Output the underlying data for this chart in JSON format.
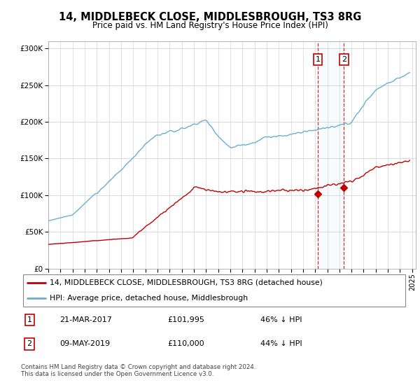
{
  "title": "14, MIDDLEBECK CLOSE, MIDDLESBROUGH, TS3 8RG",
  "subtitle": "Price paid vs. HM Land Registry's House Price Index (HPI)",
  "legend_line1": "14, MIDDLEBECK CLOSE, MIDDLESBROUGH, TS3 8RG (detached house)",
  "legend_line2": "HPI: Average price, detached house, Middlesbrough",
  "transaction1": {
    "label": "1",
    "date": "21-MAR-2017",
    "price": "£101,995",
    "pct": "46% ↓ HPI"
  },
  "transaction2": {
    "label": "2",
    "date": "09-MAY-2019",
    "price": "£110,000",
    "pct": "44% ↓ HPI"
  },
  "footer": "Contains HM Land Registry data © Crown copyright and database right 2024.\nThis data is licensed under the Open Government Licence v3.0.",
  "hpi_color": "#6aaed6",
  "price_color": "#c00000",
  "vline_color": "#c00000",
  "shade_color": "#d0e8f5",
  "background_color": "#ffffff",
  "ylim": [
    0,
    310000
  ],
  "yticks": [
    0,
    50000,
    100000,
    150000,
    200000,
    250000,
    300000
  ],
  "xlim_start": 1995.0,
  "xlim_end": 2025.3,
  "t1_x": 2017.22,
  "t2_x": 2019.37,
  "t1_y": 101995,
  "t2_y": 110000
}
